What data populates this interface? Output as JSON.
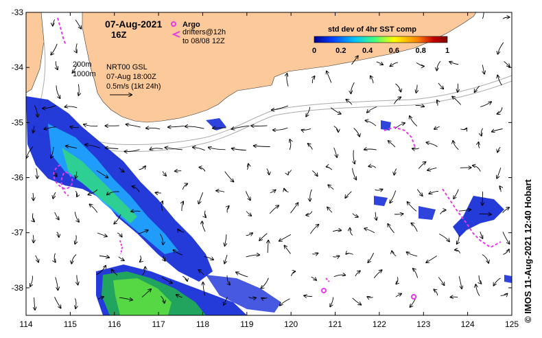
{
  "title": {
    "date": "07-Aug-2021",
    "time": "16Z"
  },
  "legend": {
    "argo": "Argo",
    "drifters_line1": "drifters@12h",
    "drifters_line2": "to 08/08 12Z",
    "argo_color": "#e838e8",
    "drifter_color": "#e838e8"
  },
  "annotation": {
    "depth1": "200m",
    "depth2": "1000m",
    "product": "NRT00 GSL",
    "valid": "07-Aug 18:00Z",
    "scale": "0.5m/s (1kt 24h)"
  },
  "colorbar": {
    "title": "std dev of 4hr SST comp",
    "ticks": [
      "0",
      "0.2",
      "0.4",
      "0.6",
      "0.8",
      "1"
    ],
    "colors": [
      "#00008f",
      "#0040ff",
      "#00c0ff",
      "#40ff80",
      "#ffff00",
      "#ff8000",
      "#c00000",
      "#800000"
    ]
  },
  "axes": {
    "x_ticks": [
      "114",
      "115",
      "116",
      "117",
      "118",
      "119",
      "120",
      "121",
      "122",
      "123",
      "124",
      "125"
    ],
    "y_ticks": [
      "-33",
      "-34",
      "-35",
      "-36",
      "-37",
      "-38"
    ],
    "xlim": [
      114,
      125
    ],
    "ylim": [
      -38.5,
      -33
    ]
  },
  "land_color": "#fbc99a",
  "credit": "© IMOS 11-Aug-2021 12:40 Hobart"
}
